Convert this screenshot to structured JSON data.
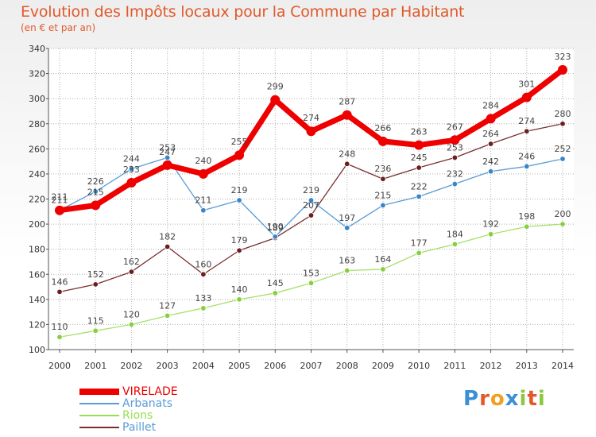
{
  "header": {
    "title": "Evolution des Impôts locaux pour la Commune par Habitant",
    "subtitle": "(en € et par an)"
  },
  "colors": {
    "title": "#e05a2b",
    "grid": "#aaaaaa",
    "axis": "#555555"
  },
  "chart_data": {
    "type": "line",
    "x": [
      2000,
      2001,
      2002,
      2003,
      2004,
      2005,
      2006,
      2007,
      2008,
      2009,
      2010,
      2011,
      2012,
      2013,
      2014
    ],
    "ylim": [
      100,
      340
    ],
    "yticks": [
      100,
      120,
      140,
      160,
      180,
      200,
      220,
      240,
      260,
      280,
      300,
      320,
      340
    ],
    "grid": true,
    "legend_placement": "bottom-left",
    "series": [
      {
        "name": "VIRELADE",
        "color": "#ee0000",
        "values": [
          211,
          215,
          233,
          247,
          240,
          255,
          299,
          274,
          287,
          266,
          263,
          267,
          284,
          301,
          323
        ],
        "labels": [
          "211",
          "215",
          "233",
          "247",
          "240",
          "255",
          "299",
          "274",
          "287",
          "266",
          "263",
          "267",
          "284",
          "301",
          "323"
        ]
      },
      {
        "name": "Arbanats",
        "color": "#5b9bd5",
        "values": [
          211,
          226,
          244,
          253,
          211,
          219,
          190,
          219,
          197,
          215,
          222,
          232,
          242,
          246,
          252
        ],
        "labels": [
          "211",
          "226",
          "244",
          "253",
          "211",
          "219",
          "190",
          "219",
          "197",
          "215",
          "222",
          "232",
          "242",
          "246",
          "252"
        ]
      },
      {
        "name": "Rions",
        "color": "#99dd55",
        "values": [
          110,
          115,
          120,
          127,
          133,
          140,
          145,
          153,
          163,
          164,
          177,
          184,
          192,
          198,
          200
        ],
        "labels": [
          "110",
          "115",
          "120",
          "127",
          "133",
          "140",
          "145",
          "153",
          "163",
          "164",
          "177",
          "184",
          "192",
          "198",
          "200"
        ]
      },
      {
        "name": "Paillet",
        "color": "#7a2e2e",
        "values": [
          146,
          152,
          162,
          182,
          160,
          179,
          189,
          207,
          248,
          236,
          245,
          253,
          264,
          274,
          280
        ],
        "labels": [
          "146",
          "152",
          "162",
          "182",
          "160",
          "179",
          "189",
          "207",
          "248",
          "236",
          "245",
          "253",
          "264",
          "274",
          "280"
        ]
      }
    ]
  },
  "legend": {
    "items": [
      {
        "label": "VIRELADE",
        "color": "#ee0000"
      },
      {
        "label": "Arbanats",
        "color": "#5b9bd5"
      },
      {
        "label": "Rions",
        "color": "#99dd55"
      },
      {
        "label": "Paillet",
        "color": "#7a2e2e"
      }
    ]
  },
  "logo": {
    "text": "Proxiti",
    "letters": [
      {
        "ch": "P",
        "color": "#3b8fd4"
      },
      {
        "ch": "r",
        "color": "#e05a2b"
      },
      {
        "ch": "o",
        "color": "#f0a020"
      },
      {
        "ch": "x",
        "color": "#3b8fd4"
      },
      {
        "ch": "i",
        "color": "#8dc63f"
      },
      {
        "ch": "t",
        "color": "#e05a2b"
      },
      {
        "ch": "i",
        "color": "#8dc63f"
      }
    ]
  }
}
